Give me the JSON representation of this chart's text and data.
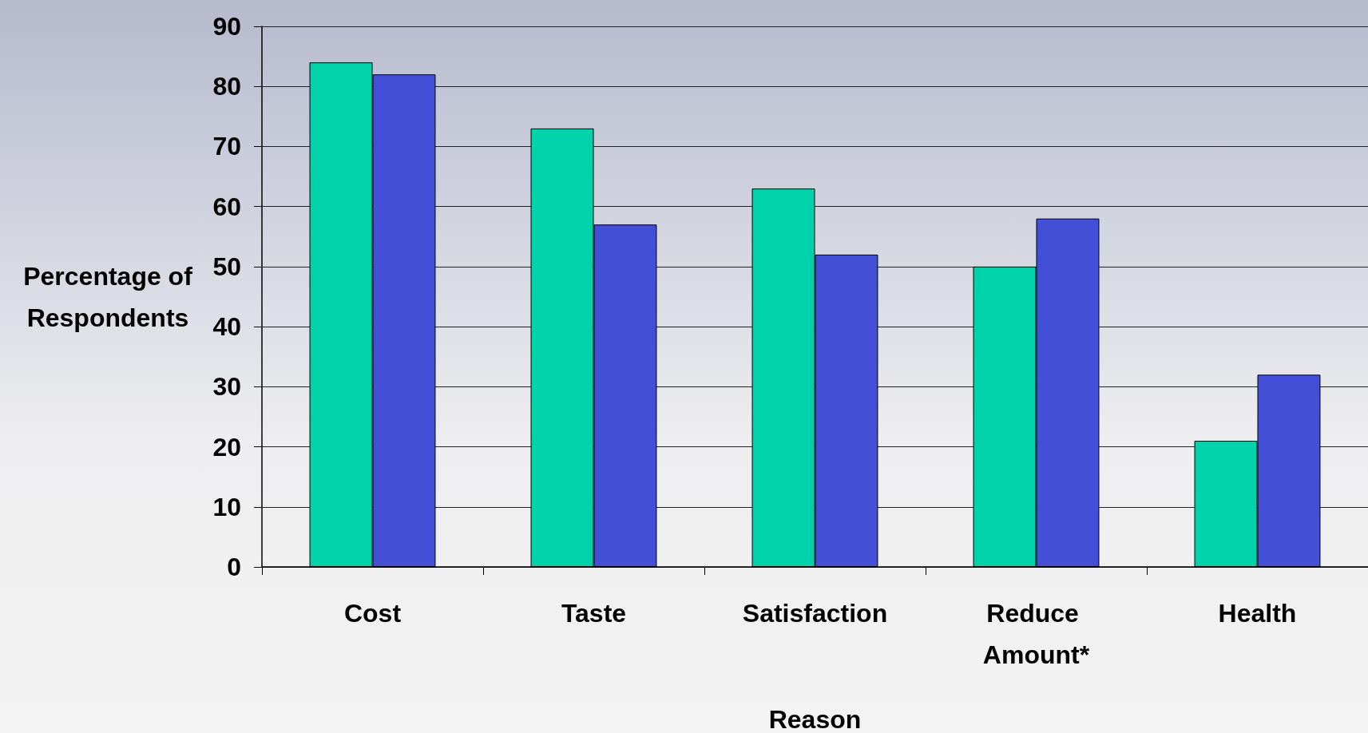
{
  "chart_data": {
    "type": "bar",
    "xlabel": "Reason",
    "ylabel": "Percentage of Respondents",
    "categories": [
      "Cost",
      "Taste",
      "Satisfaction",
      "Reduce Amount*",
      "Health"
    ],
    "series": [
      {
        "color": "#00d2aa",
        "values": [
          84,
          73,
          63,
          50,
          21
        ]
      },
      {
        "color": "#434fd6",
        "values": [
          82,
          57,
          52,
          58,
          32
        ]
      }
    ],
    "ylim": [
      0,
      90
    ],
    "yticks": [
      0,
      10,
      20,
      30,
      40,
      50,
      60,
      70,
      80,
      90
    ],
    "grid": "y"
  }
}
